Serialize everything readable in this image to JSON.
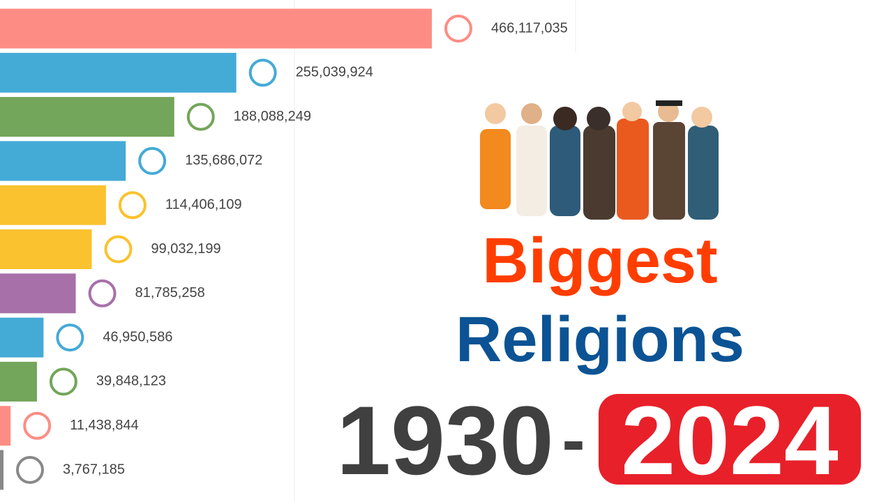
{
  "chart_data": {
    "type": "bar",
    "orientation": "horizontal",
    "categories": [
      null,
      null,
      null,
      null,
      null,
      null,
      null,
      null,
      null,
      null,
      null
    ],
    "values": [
      466117035,
      255039924,
      188088249,
      135686072,
      114406109,
      99032199,
      81785258,
      46950586,
      39848123,
      11438844,
      3767185
    ],
    "value_labels": [
      "466,117,035",
      "255,039,924",
      "188,088,249",
      "135,686,072",
      "114,406,109",
      "99,032,199",
      "81,785,258",
      "46,950,586",
      "39,848,123",
      "11,438,844",
      "3,767,185"
    ],
    "colors": [
      "#fd8d84",
      "#44aad6",
      "#73a55a",
      "#44aad6",
      "#f9c22e",
      "#f9c22e",
      "#a870a9",
      "#44aad6",
      "#73a55a",
      "#fd8d84",
      "#888888"
    ]
  },
  "title": {
    "line1": "Biggest",
    "line2": "Religions",
    "start_year": "1930",
    "separator": "-",
    "end_year": "2024"
  }
}
